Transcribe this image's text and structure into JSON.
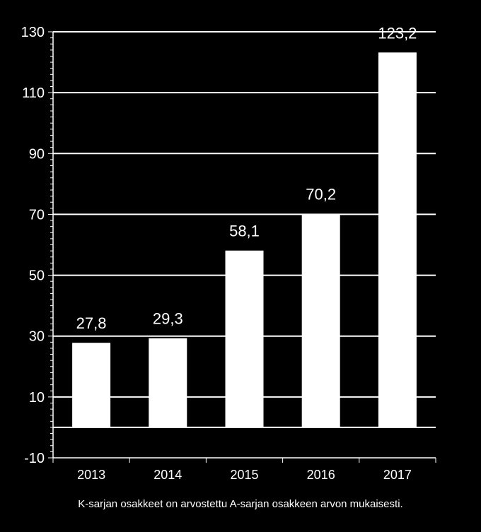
{
  "chart_data": {
    "type": "bar",
    "categories": [
      "2013",
      "2014",
      "2015",
      "2016",
      "2017"
    ],
    "values": [
      27.8,
      29.3,
      58.1,
      70.2,
      123.2
    ],
    "value_labels": [
      "27,8",
      "29,3",
      "58,1",
      "70,2",
      "123,2"
    ],
    "ylim": [
      -10,
      130
    ],
    "yticks": [
      -10,
      10,
      30,
      50,
      70,
      90,
      110,
      130
    ],
    "ytick_labels": [
      "-10",
      "10",
      "30",
      "50",
      "70",
      "90",
      "110",
      "130"
    ],
    "minor_tick_step": 2,
    "grid": true,
    "title": "",
    "xlabel": "",
    "ylabel": "",
    "colors": {
      "background": "#000000",
      "bar": "#ffffff",
      "grid": "#ffffff",
      "text": "#ffffff"
    }
  },
  "caption": "K-sarjan osakkeet on arvostettu  A-sarjan osakkeen arvon mukaisesti."
}
